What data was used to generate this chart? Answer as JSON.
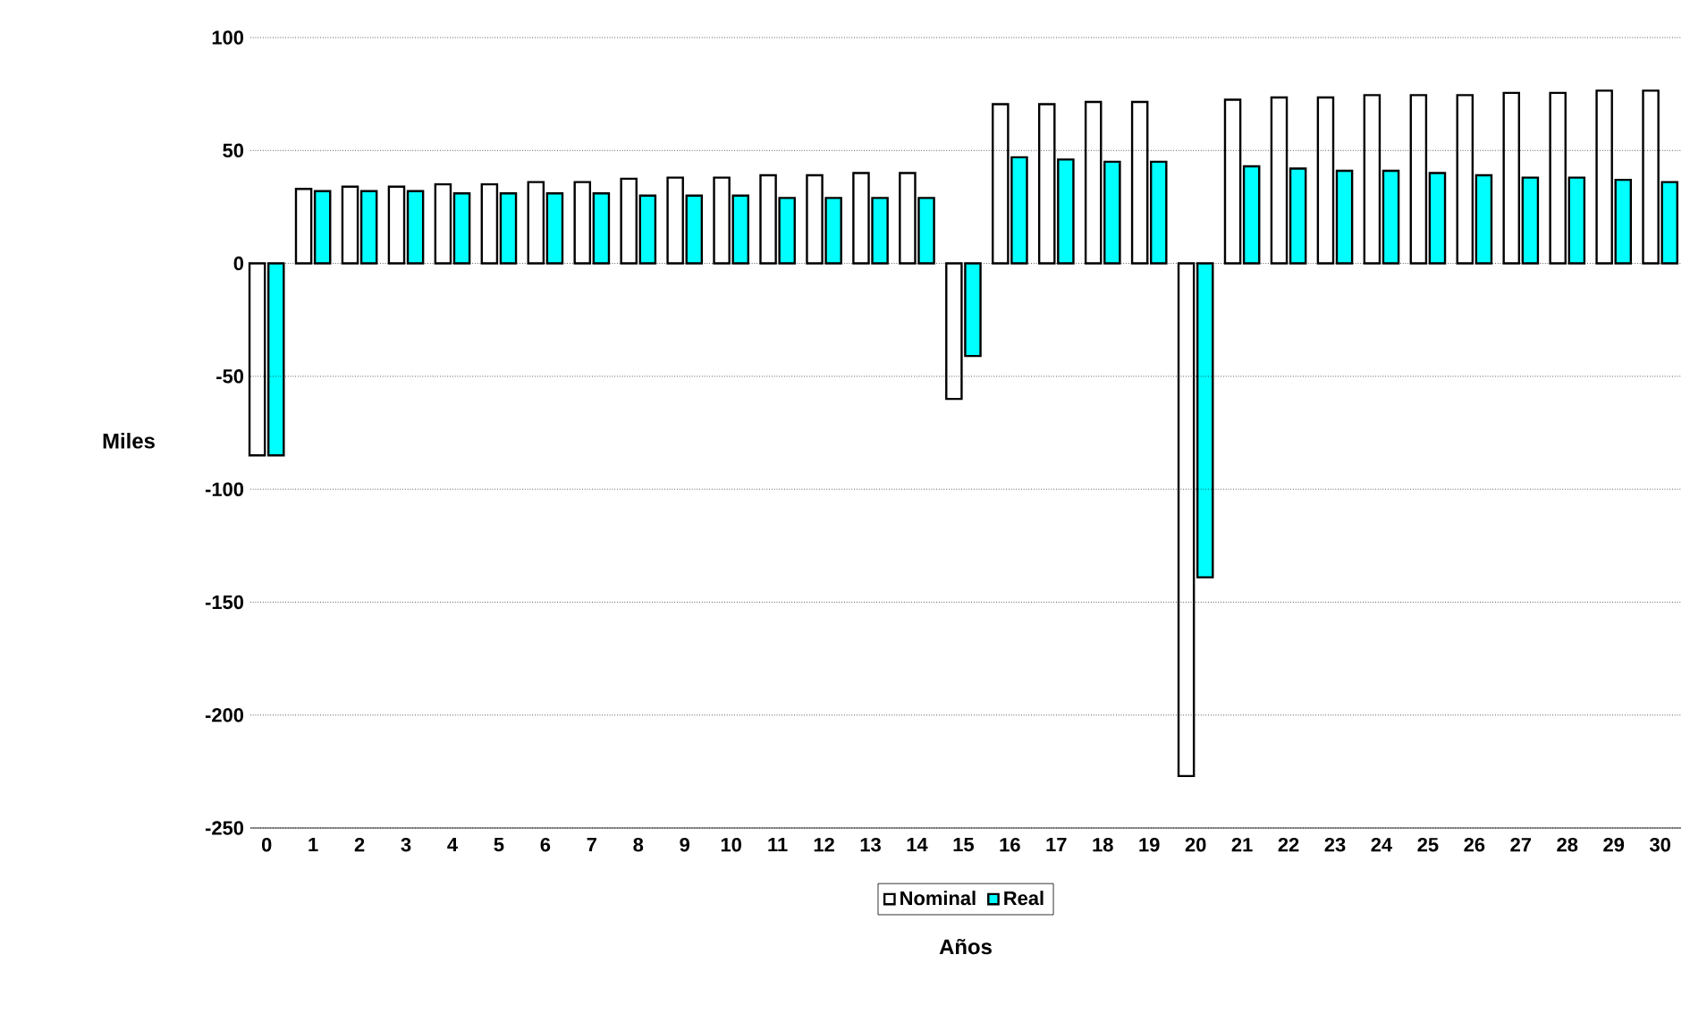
{
  "chart_data": {
    "type": "bar",
    "xlabel": "Años",
    "ylabel": "Miles",
    "categories": [
      "0",
      "1",
      "2",
      "3",
      "4",
      "5",
      "6",
      "7",
      "8",
      "9",
      "10",
      "11",
      "12",
      "13",
      "14",
      "15",
      "16",
      "17",
      "18",
      "19",
      "20",
      "21",
      "22",
      "23",
      "24",
      "25",
      "26",
      "27",
      "28",
      "29",
      "30"
    ],
    "series": [
      {
        "name": "Nominal",
        "color": "#ffffff",
        "values": [
          -85,
          33,
          34,
          34,
          35,
          35,
          36,
          36,
          37.5,
          38,
          38,
          39,
          39,
          40,
          40,
          -60,
          70.5,
          70.5,
          71.5,
          71.5,
          -227,
          72.5,
          73.5,
          73.5,
          74.5,
          74.5,
          74.5,
          75.5,
          75.5,
          76.5,
          76.5
        ]
      },
      {
        "name": "Real",
        "color": "#00ffff",
        "values": [
          -85,
          32,
          32,
          32,
          31,
          31,
          31,
          31,
          30,
          30,
          30,
          29,
          29,
          29,
          29,
          -41,
          47,
          46,
          45,
          45,
          -139,
          43,
          42,
          41,
          41,
          40,
          39,
          38,
          38,
          37,
          36
        ]
      }
    ],
    "ylim": [
      -250,
      100
    ],
    "yticks": [
      -250,
      -200,
      -150,
      -100,
      -50,
      0,
      50,
      100
    ],
    "grid": "y",
    "legend": "bottom"
  }
}
